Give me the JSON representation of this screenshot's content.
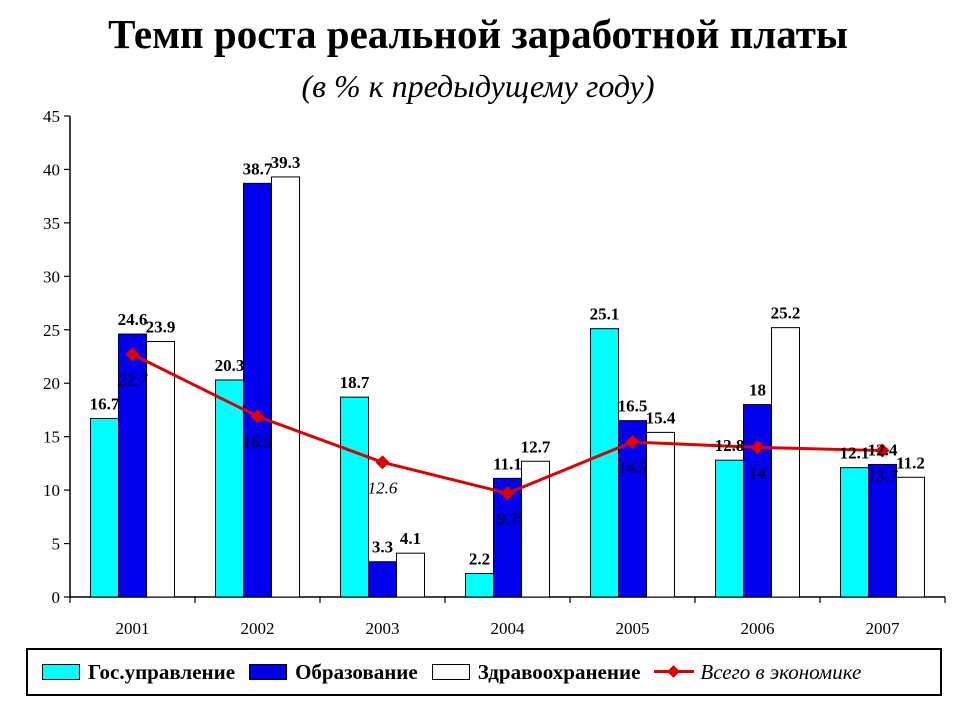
{
  "chart_data": {
    "type": "bar",
    "title": "Темп роста реальной заработной платы",
    "subtitle": "(в % к предыдущему году)",
    "categories": [
      "2001",
      "2002",
      "2003",
      "2004",
      "2005",
      "2006",
      "2007"
    ],
    "series": [
      {
        "name": "Гос.управление",
        "type": "bar",
        "color": "#00ffff",
        "values": [
          16.7,
          20.3,
          18.7,
          2.2,
          25.1,
          12.8,
          12.1
        ]
      },
      {
        "name": "Образование",
        "type": "bar",
        "color": "#0000ee",
        "values": [
          24.6,
          38.7,
          3.3,
          11.1,
          16.5,
          18,
          12.4
        ]
      },
      {
        "name": "Здравоохранение",
        "type": "bar",
        "color": "#ffffff",
        "values": [
          23.9,
          39.3,
          4.1,
          12.7,
          15.4,
          25.2,
          11.2
        ]
      },
      {
        "name": "Всего в экономике",
        "type": "line",
        "color": "#e00000",
        "values": [
          22.7,
          16.9,
          12.6,
          9.7,
          14.5,
          14,
          13.7
        ]
      }
    ],
    "ylim": [
      0,
      45
    ],
    "yticks": [
      0,
      5,
      10,
      15,
      20,
      25,
      30,
      35,
      40,
      45
    ],
    "grid": false,
    "legend_position": "bottom"
  }
}
